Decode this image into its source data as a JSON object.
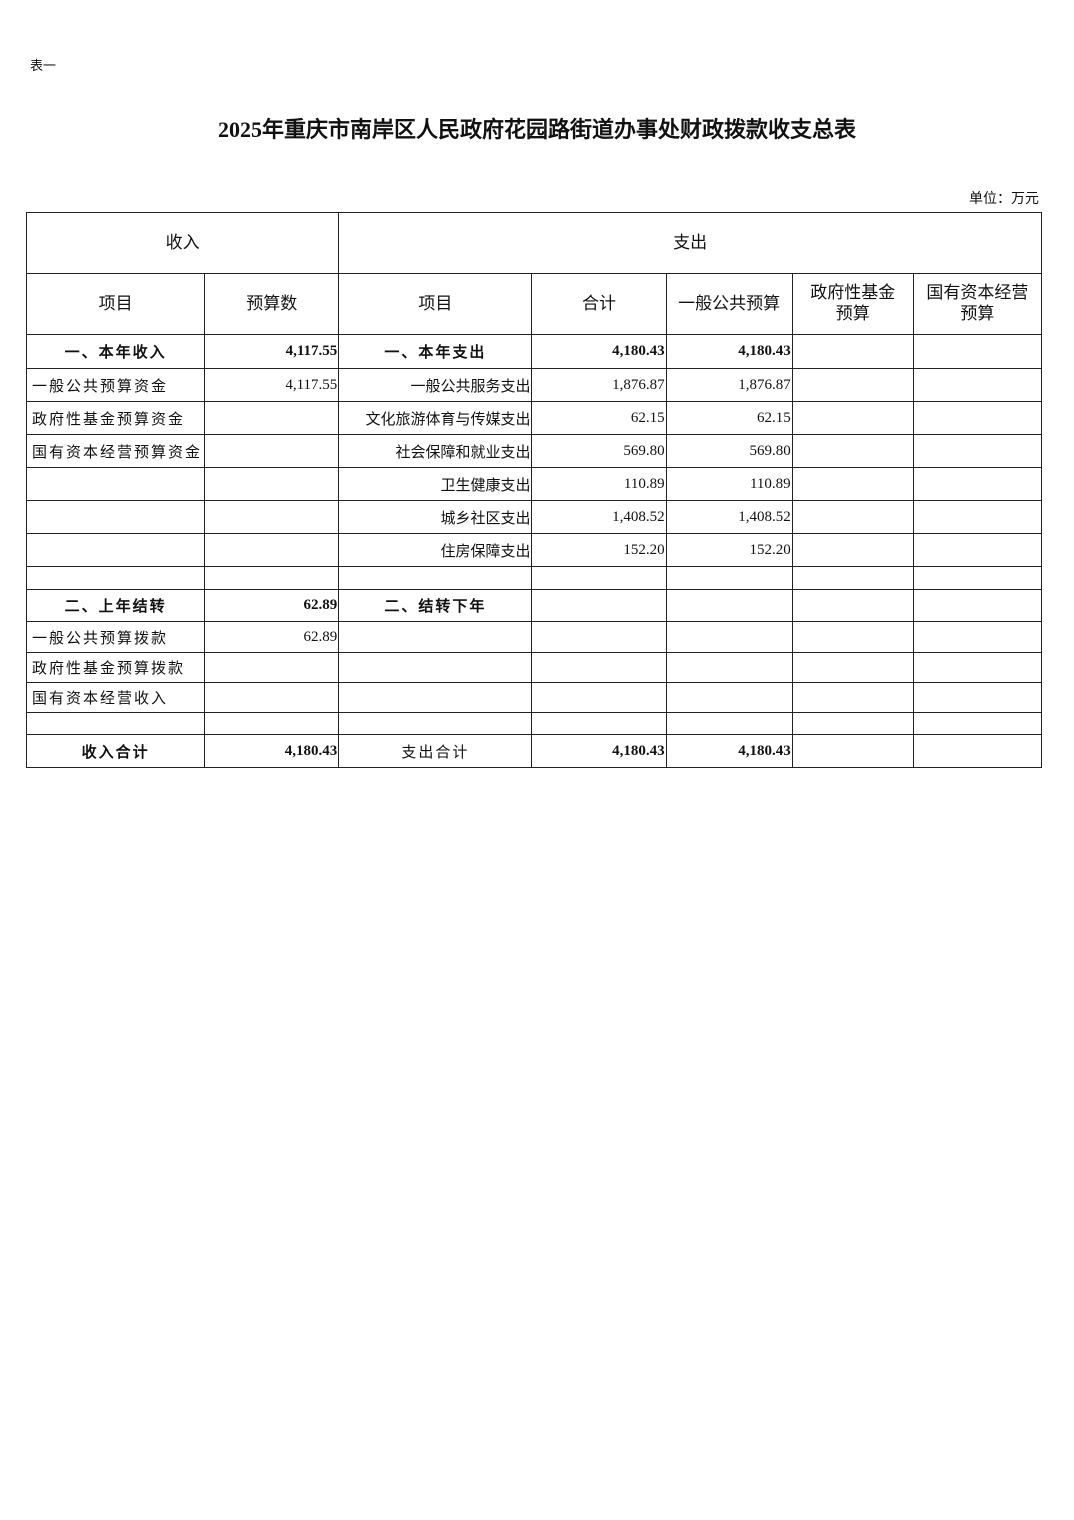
{
  "label": "表一",
  "title": "2025年重庆市南岸区人民政府花园路街道办事处财政拨款收支总表",
  "unit": "单位：万元",
  "header": {
    "income": "收入",
    "expense": "支出",
    "cols": [
      "项目",
      "预算数",
      "项目",
      "合计",
      "一般公共预算",
      "政府性基金预算",
      "国有资本经营预算"
    ]
  },
  "rows": [
    [
      "一、本年收入",
      "4,117.55",
      "一、本年支出",
      "4,180.43",
      "4,180.43",
      "",
      ""
    ],
    [
      "一般公共预算资金",
      "4,117.55",
      "一般公共服务支出",
      "1,876.87",
      "1,876.87",
      "",
      ""
    ],
    [
      "政府性基金预算资金",
      "",
      "文化旅游体育与传媒支出",
      "62.15",
      "62.15",
      "",
      ""
    ],
    [
      "国有资本经营预算资金",
      "",
      "社会保障和就业支出",
      "569.80",
      "569.80",
      "",
      ""
    ],
    [
      "",
      "",
      "卫生健康支出",
      "110.89",
      "110.89",
      "",
      ""
    ],
    [
      "",
      "",
      "城乡社区支出",
      "1,408.52",
      "1,408.52",
      "",
      ""
    ],
    [
      "",
      "",
      "住房保障支出",
      "152.20",
      "152.20",
      "",
      ""
    ],
    [
      "",
      "",
      "",
      "",
      "",
      "",
      ""
    ],
    [
      "二、上年结转",
      "62.89",
      "二、结转下年",
      "",
      "",
      "",
      ""
    ],
    [
      "一般公共预算拨款",
      "62.89",
      "",
      "",
      "",
      "",
      ""
    ],
    [
      "政府性基金预算拨款",
      "",
      "",
      "",
      "",
      "",
      ""
    ],
    [
      "国有资本经营收入",
      "",
      "",
      "",
      "",
      "",
      ""
    ],
    [
      "",
      "",
      "",
      "",
      "",
      "",
      ""
    ],
    [
      "收入合计",
      "4,180.43",
      "支出合计",
      "4,180.43",
      "4,180.43",
      "",
      ""
    ]
  ]
}
